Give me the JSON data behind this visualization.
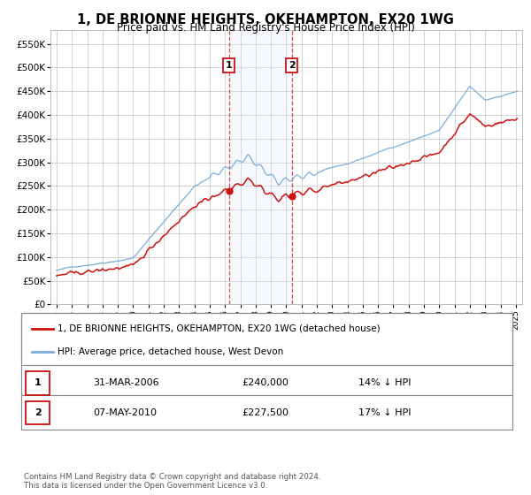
{
  "title": "1, DE BRIONNE HEIGHTS, OKEHAMPTON, EX20 1WG",
  "subtitle": "Price paid vs. HM Land Registry's House Price Index (HPI)",
  "ylabel_ticks": [
    "£0",
    "£50K",
    "£100K",
    "£150K",
    "£200K",
    "£250K",
    "£300K",
    "£350K",
    "£400K",
    "£450K",
    "£500K",
    "£550K"
  ],
  "ytick_values": [
    0,
    50000,
    100000,
    150000,
    200000,
    250000,
    300000,
    350000,
    400000,
    450000,
    500000,
    550000
  ],
  "ylim": [
    0,
    580000
  ],
  "hpi_color": "#7aadda",
  "property_color": "#cc1111",
  "transaction1_x": 2006.25,
  "transaction1_price": 240000,
  "transaction1_date": "31-MAR-2006",
  "transaction1_hpi_pct": "14% ↓ HPI",
  "transaction2_x": 2010.37,
  "transaction2_price": 227500,
  "transaction2_date": "07-MAY-2010",
  "transaction2_hpi_pct": "17% ↓ HPI",
  "legend_property_label": "1, DE BRIONNE HEIGHTS, OKEHAMPTON, EX20 1WG (detached house)",
  "legend_hpi_label": "HPI: Average price, detached house, West Devon",
  "footer": "Contains HM Land Registry data © Crown copyright and database right 2024.\nThis data is licensed under the Open Government Licence v3.0.",
  "background_color": "#ffffff",
  "grid_color": "#cccccc",
  "shade_color": "#ddeeff",
  "transaction_box_color": "#cc1111",
  "xlim_left": 1994.6,
  "xlim_right": 2025.4
}
